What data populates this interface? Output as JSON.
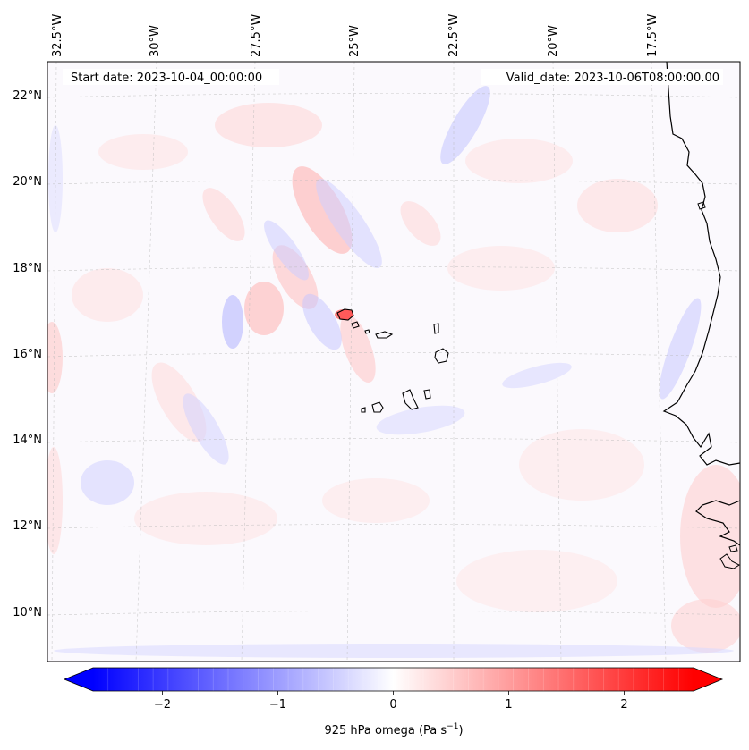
{
  "map": {
    "start_label": "Start date: 2023-10-04_00:00:00",
    "valid_label": "Valid_date: 2023-10-06T08:00:00.00",
    "lon_labels": [
      "32.5°W",
      "30°W",
      "27.5°W",
      "25°W",
      "22.5°W",
      "20°W",
      "17.5°W"
    ],
    "lat_labels": [
      "22°N",
      "20°N",
      "18°N",
      "16°N",
      "14°N",
      "12°N",
      "10°N"
    ],
    "field": "925 hPa omega",
    "background_color": "#fbf9fd",
    "positive_color": "#ff0000",
    "negative_color": "#0000ff",
    "coastline_color": "#000000"
  },
  "colorbar": {
    "label_prefix": "925 hPa omega (Pa s",
    "label_sup": "−1",
    "label_suffix": ")",
    "tick_labels": [
      "−2",
      "−1",
      "0",
      "1",
      "2"
    ],
    "tick_values": [
      -2,
      -1,
      0,
      1,
      2
    ],
    "vmin": -2.6,
    "vmax": 2.6,
    "extend": "both",
    "colormap": "bwr"
  }
}
